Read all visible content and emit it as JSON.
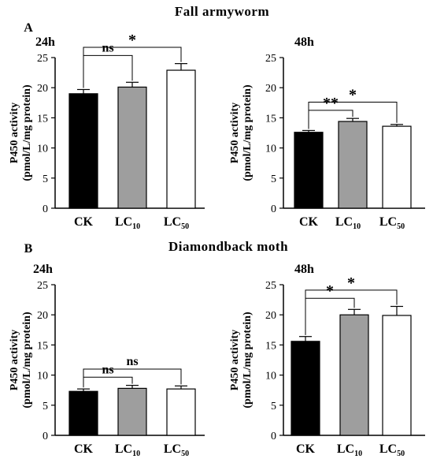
{
  "figure": {
    "section_a": {
      "letter": "A",
      "title": "Fall armyworm"
    },
    "section_b": {
      "letter": "B",
      "title": "Diamondback moth"
    }
  },
  "chart_data": [
    {
      "id": "a24",
      "type": "bar",
      "title": "24h",
      "ylabel_line1": "P450 activity",
      "ylabel_line2": "(pmol/L/mg protein)",
      "ylim": [
        0,
        25
      ],
      "yticks": [
        "0",
        "5",
        "10",
        "15",
        "20",
        "25"
      ],
      "categories": [
        {
          "main": "CK",
          "sub": ""
        },
        {
          "main": "LC",
          "sub": "10"
        },
        {
          "main": "LC",
          "sub": "50"
        }
      ],
      "values": [
        19.0,
        20.1,
        22.9
      ],
      "errors": [
        0.7,
        0.8,
        1.1
      ],
      "bar_colors": [
        "#000000",
        "#9e9e9e",
        "#ffffff"
      ],
      "grid": false,
      "annotations": [
        {
          "from": 0,
          "to": 1,
          "label": "ns"
        },
        {
          "from": 0,
          "to": 2,
          "label": "*"
        }
      ]
    },
    {
      "id": "a48",
      "type": "bar",
      "title": "48h",
      "ylabel_line1": "P450 activity",
      "ylabel_line2": "(pmol/L/mg protein)",
      "ylim": [
        0,
        25
      ],
      "yticks": [
        "0",
        "5",
        "10",
        "15",
        "20",
        "25"
      ],
      "categories": [
        {
          "main": "CK",
          "sub": ""
        },
        {
          "main": "LC",
          "sub": "10"
        },
        {
          "main": "LC",
          "sub": "50"
        }
      ],
      "values": [
        12.6,
        14.4,
        13.6
      ],
      "errors": [
        0.3,
        0.5,
        0.3
      ],
      "bar_colors": [
        "#000000",
        "#9e9e9e",
        "#ffffff"
      ],
      "grid": false,
      "annotations": [
        {
          "from": 0,
          "to": 1,
          "label": "**"
        },
        {
          "from": 0,
          "to": 2,
          "label": "*"
        }
      ]
    },
    {
      "id": "b24",
      "type": "bar",
      "title": "24h",
      "ylabel_line1": "P450 activity",
      "ylabel_line2": "(pmol/L/mg protein)",
      "ylim": [
        0,
        25
      ],
      "yticks": [
        "0",
        "5",
        "10",
        "15",
        "20",
        "25"
      ],
      "categories": [
        {
          "main": "CK",
          "sub": ""
        },
        {
          "main": "LC",
          "sub": "10"
        },
        {
          "main": "LC",
          "sub": "50"
        }
      ],
      "values": [
        7.3,
        7.8,
        7.7
      ],
      "errors": [
        0.4,
        0.5,
        0.5
      ],
      "bar_colors": [
        "#000000",
        "#9e9e9e",
        "#ffffff"
      ],
      "grid": false,
      "annotations": [
        {
          "from": 0,
          "to": 1,
          "label": "ns"
        },
        {
          "from": 0,
          "to": 2,
          "label": "ns"
        }
      ]
    },
    {
      "id": "b48",
      "type": "bar",
      "title": "48h",
      "ylabel_line1": "P450 activity",
      "ylabel_line2": "(pmol/L/mg protein)",
      "ylim": [
        0,
        25
      ],
      "yticks": [
        "0",
        "5",
        "10",
        "15",
        "20",
        "25"
      ],
      "categories": [
        {
          "main": "CK",
          "sub": ""
        },
        {
          "main": "LC",
          "sub": "10"
        },
        {
          "main": "LC",
          "sub": "50"
        }
      ],
      "values": [
        15.6,
        20.0,
        19.9
      ],
      "errors": [
        0.8,
        0.9,
        1.5
      ],
      "bar_colors": [
        "#000000",
        "#9e9e9e",
        "#ffffff"
      ],
      "grid": false,
      "annotations": [
        {
          "from": 0,
          "to": 1,
          "label": "*"
        },
        {
          "from": 0,
          "to": 2,
          "label": "*"
        }
      ]
    }
  ]
}
